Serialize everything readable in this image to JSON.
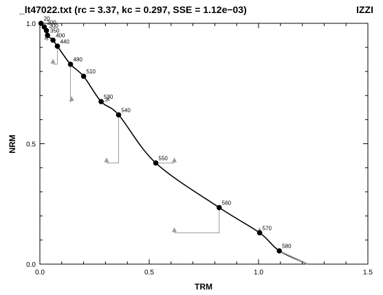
{
  "chart_data": {
    "type": "scatter",
    "title": "_lt47022.txt  (rc = 3.37,  kc = 0.297,  SSE = 1.12e−03)",
    "tag": "IZZI",
    "xlabel": "TRM",
    "ylabel": "NRM",
    "xlim": [
      0.0,
      1.5
    ],
    "ylim": [
      0.0,
      1.0
    ],
    "xticks": [
      {
        "v": 0.0,
        "label": "0.0"
      },
      {
        "v": 0.5,
        "label": "0.5"
      },
      {
        "v": 1.0,
        "label": "1.0"
      },
      {
        "v": 1.5,
        "label": "1.5"
      }
    ],
    "yticks": [
      {
        "v": 0.0,
        "label": "0.0"
      },
      {
        "v": 0.5,
        "label": "0.5"
      },
      {
        "v": 1.0,
        "label": "1.0"
      }
    ],
    "grid": false,
    "points": [
      {
        "label": "20",
        "x": 0.005,
        "y": 1.0
      },
      {
        "label": "200",
        "x": 0.02,
        "y": 0.985
      },
      {
        "label": "300",
        "x": 0.03,
        "y": 0.97
      },
      {
        "label": "350",
        "x": 0.035,
        "y": 0.95
      },
      {
        "label": "400",
        "x": 0.06,
        "y": 0.93
      },
      {
        "label": "440",
        "x": 0.08,
        "y": 0.905
      },
      {
        "label": "480",
        "x": 0.14,
        "y": 0.83
      },
      {
        "label": "510",
        "x": 0.2,
        "y": 0.78
      },
      {
        "label": "530",
        "x": 0.28,
        "y": 0.675
      },
      {
        "label": "540",
        "x": 0.36,
        "y": 0.62
      },
      {
        "label": "550",
        "x": 0.53,
        "y": 0.42
      },
      {
        "label": "560",
        "x": 0.82,
        "y": 0.235
      },
      {
        "label": "570",
        "x": 1.005,
        "y": 0.13
      },
      {
        "label": "580",
        "x": 1.095,
        "y": 0.055
      }
    ],
    "ptrm_checks": [
      {
        "from": [
          0.035,
          0.95
        ],
        "to": [
          0.03,
          0.93
        ]
      },
      {
        "from": [
          0.08,
          0.905
        ],
        "to": [
          0.06,
          0.83
        ]
      },
      {
        "from": [
          0.14,
          0.83
        ],
        "to": [
          0.145,
          0.675
        ]
      },
      {
        "from": [
          0.28,
          0.675
        ],
        "to": [
          0.31,
          0.675
        ]
      },
      {
        "from": [
          0.36,
          0.62
        ],
        "to": [
          0.305,
          0.42
        ]
      },
      {
        "from": [
          0.53,
          0.42
        ],
        "to": [
          0.615,
          0.42
        ]
      },
      {
        "from": [
          0.82,
          0.235
        ],
        "to": [
          0.615,
          0.13
        ]
      },
      {
        "from": [
          1.005,
          0.13
        ],
        "to": [
          1.005,
          0.13
        ]
      }
    ],
    "fit_curve": {
      "x_end": 1.225,
      "tail_from_x": 1.09,
      "color": "#000000",
      "tail_color": "#999999"
    },
    "colors": {
      "points": "#000000",
      "checks": "#999999",
      "axes": "#000000"
    }
  }
}
